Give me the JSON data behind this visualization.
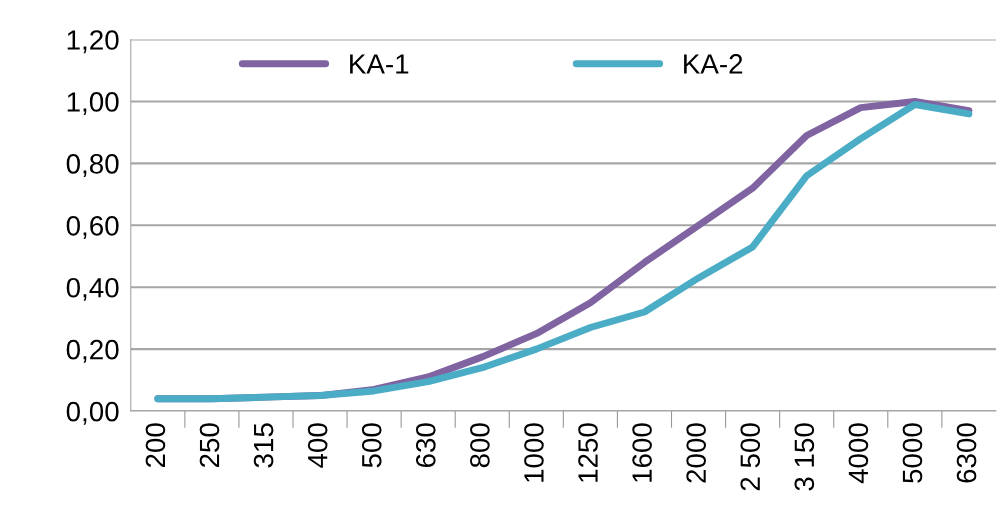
{
  "chart_data": {
    "type": "line",
    "categories": [
      "200",
      "250",
      "315",
      "400",
      "500",
      "630",
      "800",
      "1000",
      "1250",
      "1600",
      "2000",
      "2 500",
      "3 150",
      "4000",
      "5000",
      "6300"
    ],
    "series": [
      {
        "name": "KA-1",
        "color": "#8064a2",
        "values": [
          0.04,
          0.04,
          0.045,
          0.05,
          0.07,
          0.11,
          0.175,
          0.25,
          0.35,
          0.48,
          0.6,
          0.72,
          0.89,
          0.98,
          1.0,
          0.97
        ]
      },
      {
        "name": "KA-2",
        "color": "#4bacc6",
        "values": [
          0.04,
          0.04,
          0.045,
          0.05,
          0.065,
          0.095,
          0.14,
          0.2,
          0.27,
          0.32,
          0.43,
          0.53,
          0.76,
          0.88,
          0.99,
          0.96
        ]
      }
    ],
    "ylim": [
      0,
      1.2
    ],
    "yticks": [
      {
        "value": 0,
        "label": "0,00"
      },
      {
        "value": 0.2,
        "label": "0,20"
      },
      {
        "value": 0.4,
        "label": "0,40"
      },
      {
        "value": 0.6,
        "label": "0,60"
      },
      {
        "value": 0.8,
        "label": "0,80"
      },
      {
        "value": 1.0,
        "label": "1,00"
      },
      {
        "value": 1.2,
        "label": "1,20"
      }
    ],
    "grid": "y",
    "legend": "top left",
    "marker": "none",
    "line_style": "solid"
  }
}
